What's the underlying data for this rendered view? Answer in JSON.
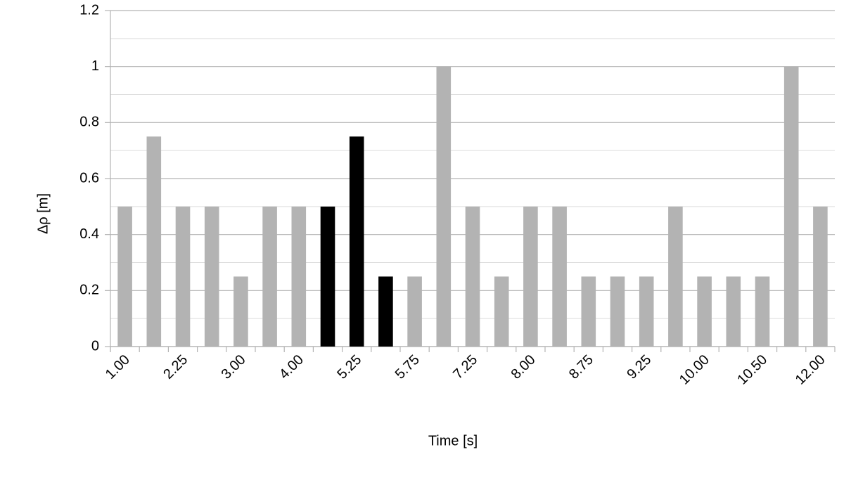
{
  "chart_data": {
    "type": "bar",
    "x_label": "Time [s]",
    "y_label": "Δρ [m]",
    "categories": [
      "1.00",
      null,
      "2.25",
      null,
      "3.00",
      null,
      "4.00",
      null,
      "5.25",
      null,
      "5.75",
      null,
      "7.25",
      null,
      "8.00",
      null,
      "8.75",
      null,
      "9.25",
      null,
      "10.00",
      null,
      "10.50",
      null,
      "12.00"
    ],
    "values": [
      0.5,
      0.75,
      0.5,
      0.5,
      0.25,
      0.5,
      0.5,
      0.5,
      0.75,
      0.25,
      0.25,
      1,
      0.5,
      0.25,
      0.5,
      0.5,
      0.25,
      0.25,
      0.25,
      0.5,
      0.25,
      0.25,
      0.25,
      1,
      0.5
    ],
    "colors": [
      "#b3b3b3",
      "#b3b3b3",
      "#b3b3b3",
      "#b3b3b3",
      "#b3b3b3",
      "#b3b3b3",
      "#b3b3b3",
      "#000000",
      "#000000",
      "#000000",
      "#b3b3b3",
      "#b3b3b3",
      "#b3b3b3",
      "#b3b3b3",
      "#b3b3b3",
      "#b3b3b3",
      "#b3b3b3",
      "#b3b3b3",
      "#b3b3b3",
      "#b3b3b3",
      "#b3b3b3",
      "#b3b3b3",
      "#b3b3b3",
      "#b3b3b3",
      "#b3b3b3"
    ],
    "ylim": [
      0,
      1.2
    ],
    "yticks": [
      0,
      0.2,
      0.4,
      0.6,
      0.8,
      1,
      1.2
    ],
    "minor_yticks": [
      0.1,
      0.3,
      0.5,
      0.7,
      0.9,
      1.1
    ],
    "grid": true
  }
}
